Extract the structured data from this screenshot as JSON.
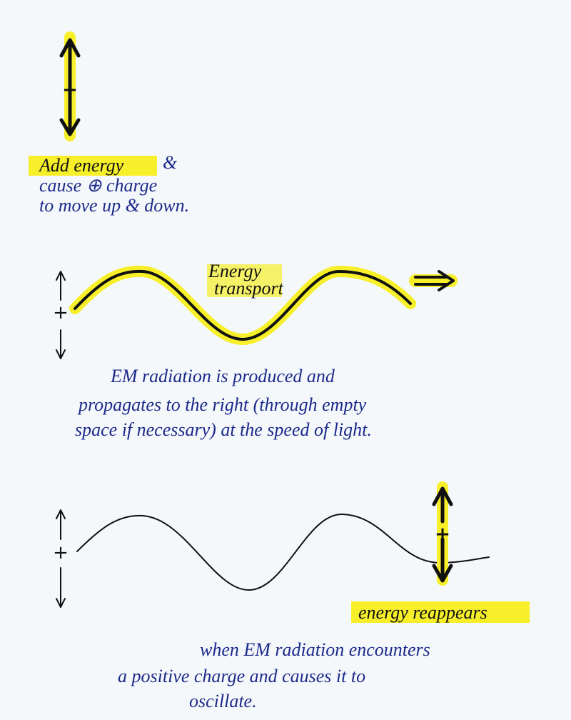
{
  "panel1": {
    "highlight": "Add energy",
    "lines": [
      "&",
      "cause ⊕ charge",
      "to move up & down."
    ],
    "charge": "+"
  },
  "panel2": {
    "label": [
      "Energy",
      "transport"
    ],
    "caption": [
      "EM radiation is produced and",
      "propagates to the right (through empty",
      "space if necessary) at the speed of light."
    ],
    "charge": "+"
  },
  "panel3": {
    "highlight": "energy reappears",
    "caption": [
      "when EM radiation encounters",
      "a positive charge and causes it to",
      "oscillate."
    ],
    "charge": "+"
  }
}
